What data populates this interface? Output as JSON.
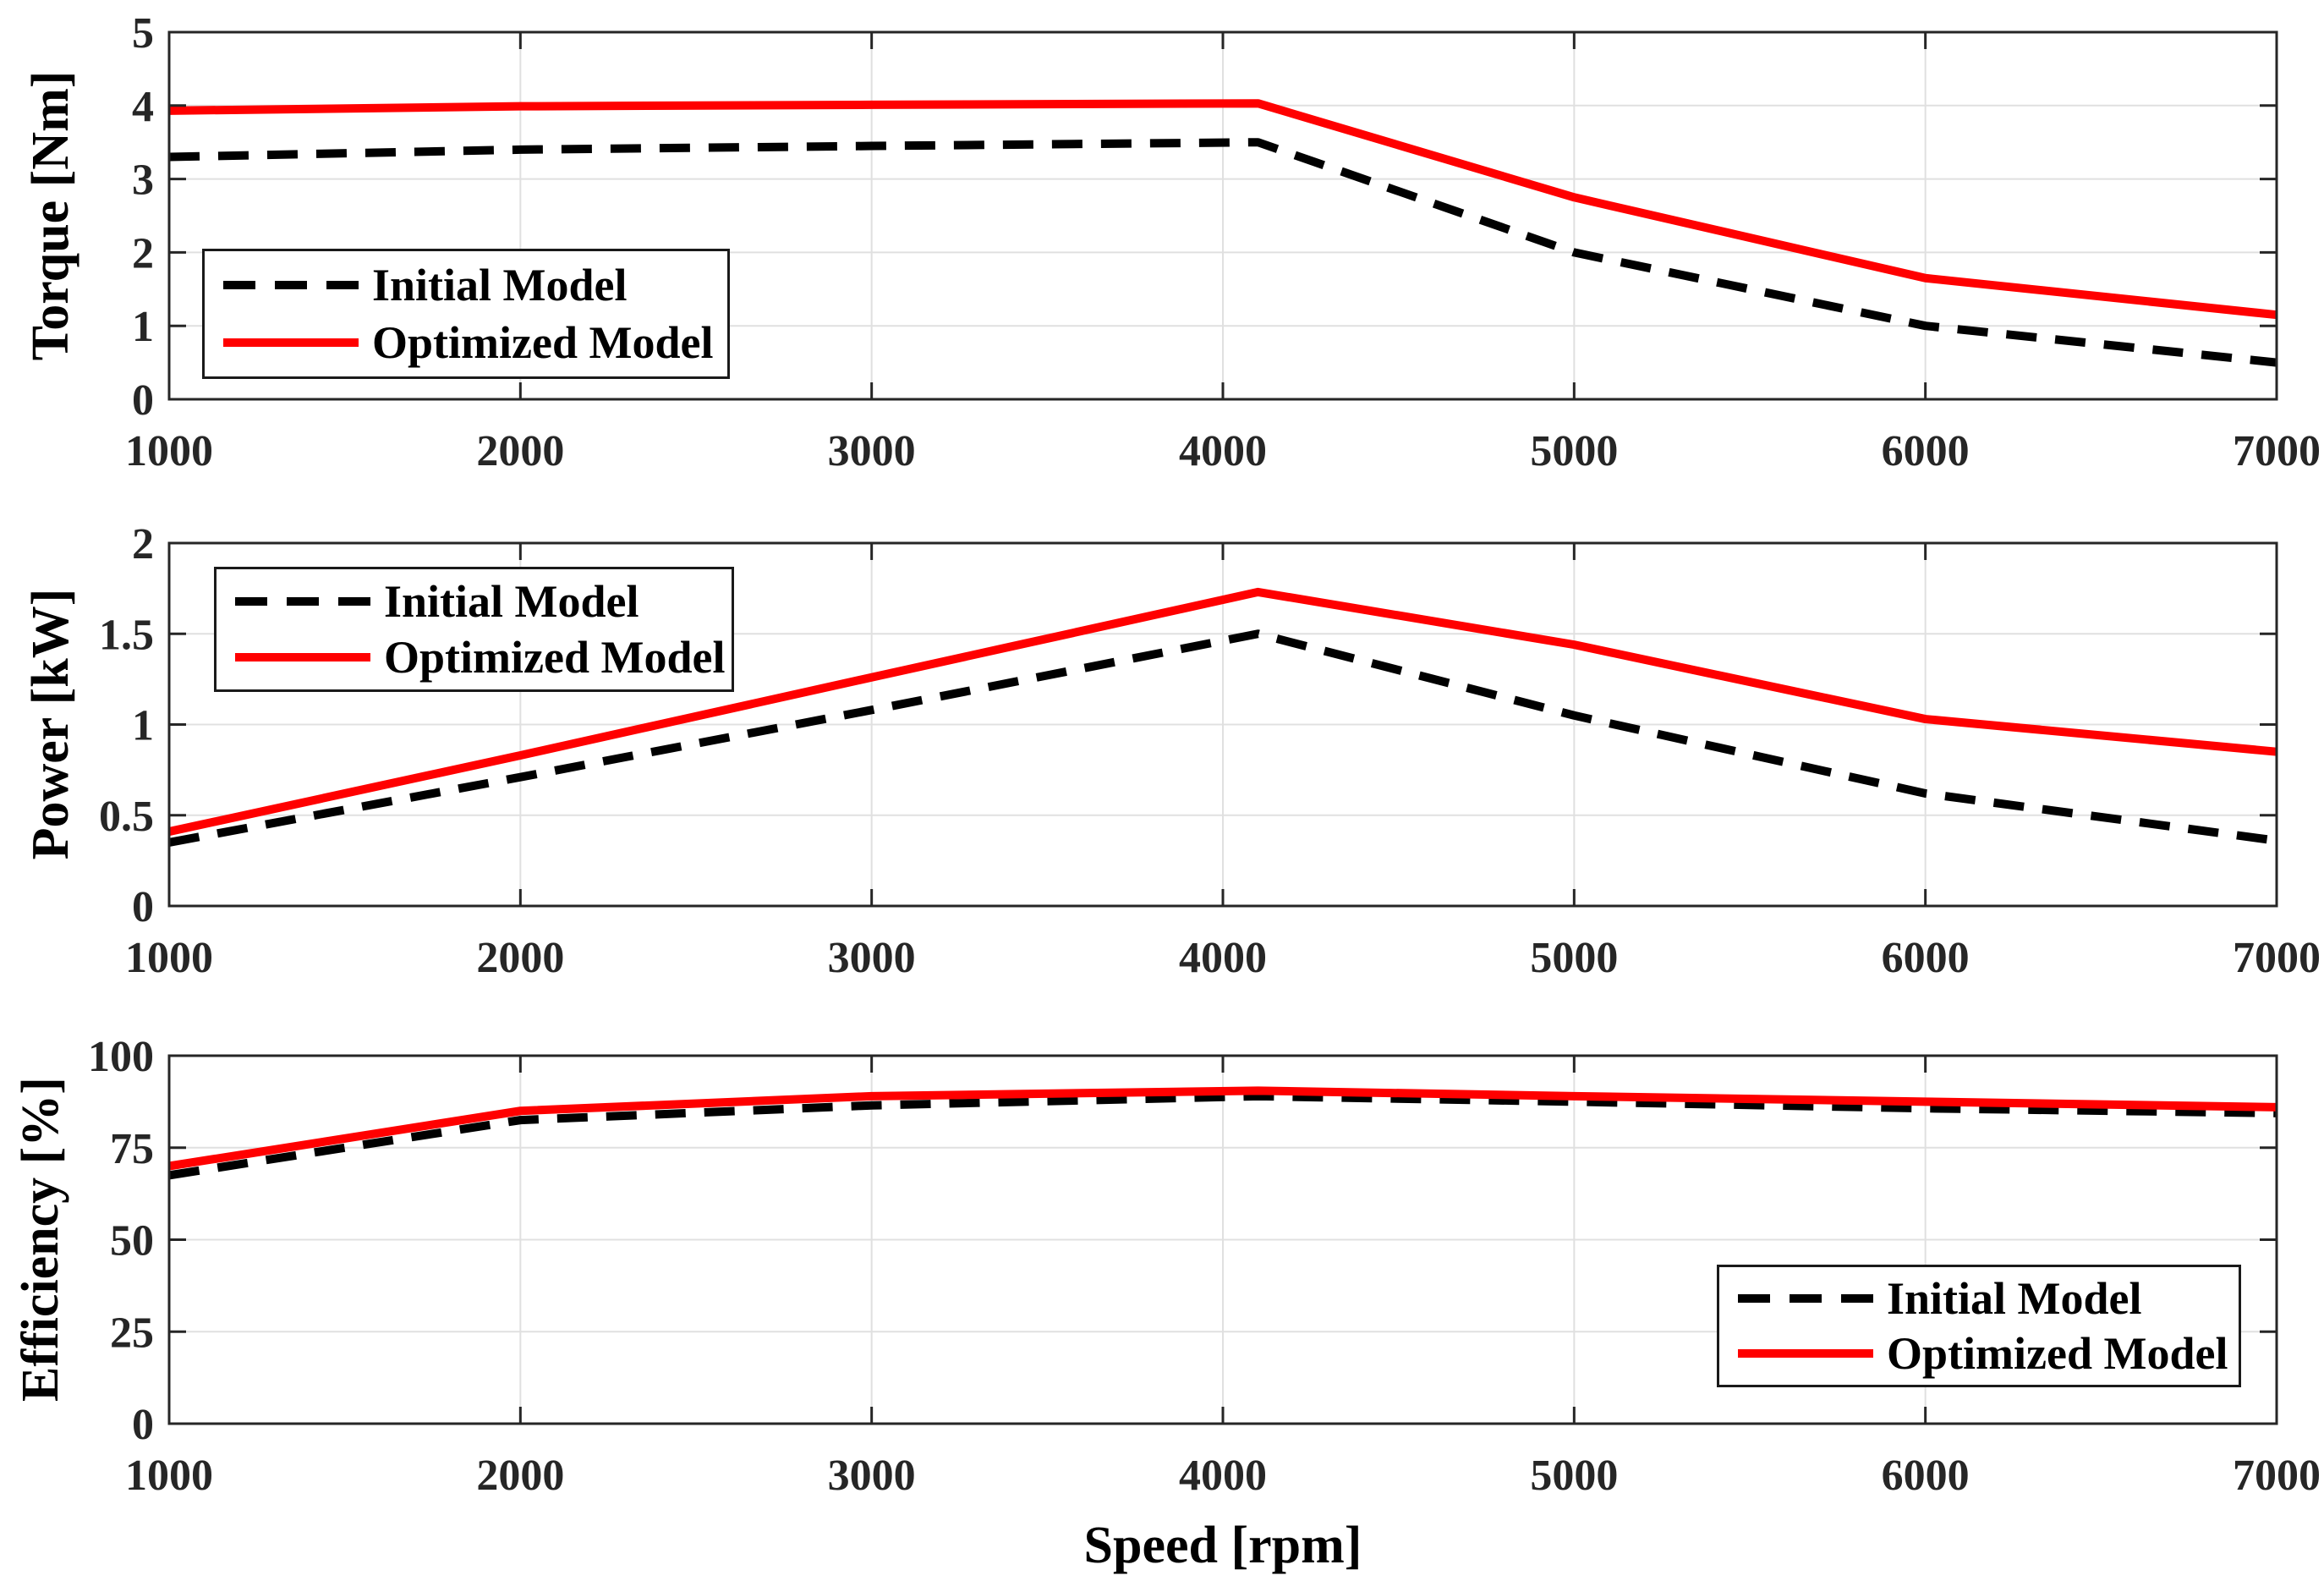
{
  "figure": {
    "xlabel": "Speed [rpm]",
    "x_ticks": [
      1000,
      2000,
      3000,
      4000,
      5000,
      6000,
      7000
    ],
    "x_tick_labels": [
      "1000",
      "2000",
      "3000",
      "4000",
      "5000",
      "6000",
      "7000"
    ],
    "xlim": [
      1000,
      7000
    ],
    "grid": true
  },
  "colors": {
    "optimized_line": "#FF0000",
    "initial_line": "#000000",
    "axis": "#262626",
    "grid": "#E0E0E0",
    "tick_text": "#262626",
    "background": "#FFFFFF"
  },
  "chart_data": [
    {
      "id": "torque",
      "type": "line",
      "ylabel": "Torque [Nm]",
      "ylim": [
        0,
        5
      ],
      "yticks": [
        0,
        1,
        2,
        3,
        4,
        5
      ],
      "ytick_labels": [
        "0",
        "1",
        "2",
        "3",
        "4",
        "5"
      ],
      "x": [
        1000,
        2000,
        3000,
        4100,
        5000,
        6000,
        7000
      ],
      "series": [
        {
          "name": "Initial Model",
          "style": "dashed",
          "color": "#000000",
          "values": [
            3.3,
            3.4,
            3.45,
            3.5,
            2.0,
            1.0,
            0.5
          ]
        },
        {
          "name": "Optimized Model",
          "style": "solid",
          "color": "#FF0000",
          "values": [
            3.93,
            3.99,
            4.01,
            4.03,
            2.75,
            1.65,
            1.15
          ]
        }
      ],
      "legend_position": "top-left",
      "grid": true
    },
    {
      "id": "power",
      "type": "line",
      "ylabel": "Power [kW]",
      "ylim": [
        0,
        2
      ],
      "yticks": [
        0,
        0.5,
        1,
        1.5,
        2
      ],
      "ytick_labels": [
        "0",
        "0.5",
        "1",
        "1.5",
        "2"
      ],
      "x": [
        1000,
        2000,
        3000,
        4100,
        5000,
        6000,
        7000
      ],
      "series": [
        {
          "name": "Initial Model",
          "style": "dashed",
          "color": "#000000",
          "values": [
            0.35,
            0.71,
            1.08,
            1.5,
            1.05,
            0.62,
            0.36
          ]
        },
        {
          "name": "Optimized Model",
          "style": "solid",
          "color": "#FF0000",
          "values": [
            0.41,
            0.83,
            1.26,
            1.73,
            1.44,
            1.03,
            0.85
          ]
        }
      ],
      "legend_position": "top-left",
      "grid": true
    },
    {
      "id": "efficiency",
      "type": "line",
      "ylabel": "Efficiency [%]",
      "ylim": [
        0,
        100
      ],
      "yticks": [
        0,
        25,
        50,
        75,
        100
      ],
      "ytick_labels": [
        "0",
        "25",
        "50",
        "75",
        "100"
      ],
      "x": [
        1000,
        2000,
        3000,
        4100,
        5000,
        6000,
        7000
      ],
      "series": [
        {
          "name": "Initial Model",
          "style": "dashed",
          "color": "#000000",
          "values": [
            67.5,
            82.5,
            86.5,
            89.0,
            87.5,
            85.7,
            84.4
          ]
        },
        {
          "name": "Optimized Model",
          "style": "solid",
          "color": "#FF0000",
          "values": [
            70.0,
            85.0,
            89.0,
            90.5,
            89.0,
            87.5,
            86.0
          ]
        }
      ],
      "legend_position": "bottom-right",
      "grid": true
    }
  ]
}
